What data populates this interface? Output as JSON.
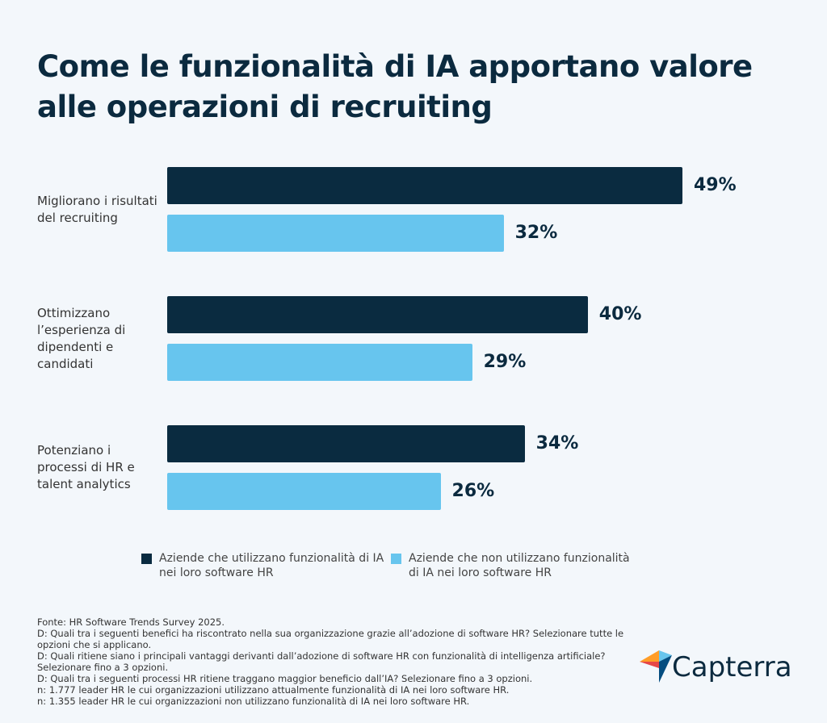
{
  "chart_data": {
    "type": "hbar",
    "title": "Come le funzionalità di IA apportano valore alle operazioni di recruiting",
    "categories": [
      "Migliorano i risultati del recruiting",
      "Ottimizzano l’esperienza di dipendenti e candidati",
      "Potenziano i processi di HR e talent analytics"
    ],
    "series": [
      {
        "name": "Aziende che utilizzano funzionalità di IA nei loro software HR",
        "color": "#0a2b40",
        "values": [
          49,
          40,
          34
        ],
        "value_labels": [
          "49%",
          "40%",
          "34%"
        ]
      },
      {
        "name": "Aziende che non utilizzano funzionalità di IA nei loro software HR",
        "color": "#67c5ee",
        "values": [
          32,
          29,
          26
        ],
        "value_labels": [
          "32%",
          "29%",
          "26%"
        ]
      }
    ],
    "notes": [
      "Fonte: HR Software Trends Survey 2025.",
      "D: Quali tra i seguenti benefici ha riscontrato nella sua organizzazione grazie all’adozione di software HR? Selezionare tutte le opzioni che si applicano.",
      "D: Quali ritiene siano i principali vantaggi derivanti dall’adozione di software HR con funzionalità di intelligenza artificiale? Selezionare fino a 3 opzioni.",
      "D: Quali tra i seguenti processi HR ritiene traggano maggior beneficio dall’IA? Selezionare fino a 3 opzioni.",
      "n: 1.777 leader HR le cui organizzazioni utilizzano attualmente funzionalità di IA nei loro software HR.",
      "n: 1.355 leader HR le cui organizzazioni non utilizzano funzionalità di IA nei loro software HR."
    ]
  },
  "logo": "Capterra"
}
